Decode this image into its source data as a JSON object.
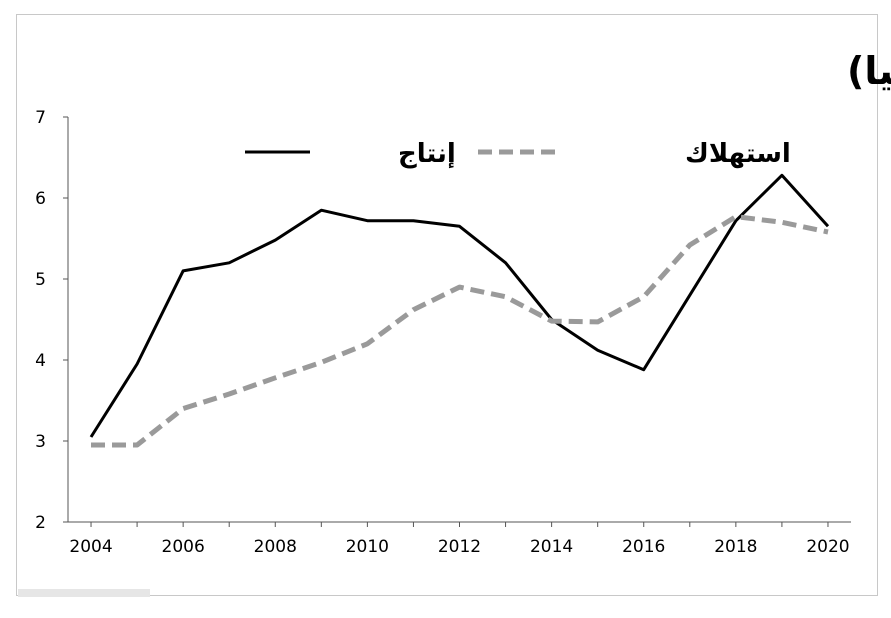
{
  "chart_data": {
    "type": "line",
    "title": "سوق الغاز (مليار قدم مكعب يوميا)",
    "xlabel": "",
    "ylabel": "",
    "x": [
      2004,
      2005,
      2006,
      2007,
      2008,
      2009,
      2010,
      2011,
      2012,
      2013,
      2014,
      2015,
      2016,
      2017,
      2018,
      2019,
      2020
    ],
    "x_ticks": [
      2004,
      2006,
      2008,
      2010,
      2012,
      2014,
      2016,
      2018,
      2020
    ],
    "y_ticks": [
      2,
      3,
      4,
      5,
      6,
      7
    ],
    "xlim": [
      2003.5,
      2020.5
    ],
    "ylim": [
      2,
      7
    ],
    "grid": false,
    "legend_position": "top",
    "series": [
      {
        "name": "إنتاج",
        "style": "solid",
        "color": "#000000",
        "values": [
          3.05,
          3.95,
          5.1,
          5.2,
          5.48,
          5.85,
          5.72,
          5.72,
          5.65,
          5.2,
          4.5,
          4.12,
          3.88,
          4.8,
          5.72,
          6.28,
          5.65
        ]
      },
      {
        "name": "استهلاك",
        "style": "dashed",
        "color": "#9a9a9a",
        "values": [
          2.95,
          2.95,
          3.4,
          3.58,
          3.78,
          3.97,
          4.2,
          4.62,
          4.9,
          4.78,
          4.48,
          4.47,
          4.78,
          5.42,
          5.77,
          5.7,
          5.58
        ]
      }
    ]
  }
}
